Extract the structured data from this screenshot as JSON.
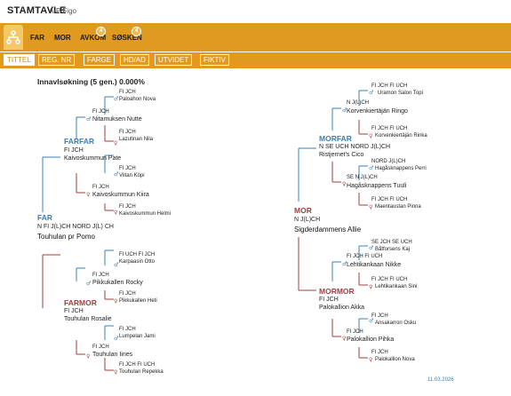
{
  "header": {
    "brand": "STAMTAVLE",
    "sub": "A-P Figo"
  },
  "nav": [
    {
      "label": "FAR"
    },
    {
      "label": "MOR"
    },
    {
      "label": "AVKOM",
      "badge": "4"
    },
    {
      "label": "SØSKEN",
      "badge": "4"
    }
  ],
  "subnav": [
    "TITTEL",
    "REG. NR",
    "FARGE",
    "HD/AD",
    "UTVIDET",
    "FIKTIV"
  ],
  "pedigree": {
    "title": "Innavlsøkning (5 gen.) 0.000%",
    "far": {
      "label": "FAR",
      "title": "N FI J(L)CH NORD J(L) CH",
      "name": "Touhulan pr Pomo"
    },
    "farfar": {
      "label": "FARFAR",
      "title": "FI JCH",
      "name": "Kaivoskummun Pate"
    },
    "farfar_f": {
      "title": "FI JCH",
      "name": "Nitamuksen Nutte"
    },
    "farfar_ff": {
      "title": "FI JCH",
      "name": "Paloahon Nova"
    },
    "farfar_fm": {
      "title": "FI JCH",
      "name": "Lazutinan Nila"
    },
    "farfar_m": {
      "title": "FI JCH",
      "name": "Kaivoskummun Kiira"
    },
    "farfar_mf": {
      "title": "FI JCH",
      "name": "Viitan Köpi"
    },
    "farfar_mm": {
      "title": "FI JCH",
      "name": "Kaivoskummun Helmi"
    },
    "farmor": {
      "label": "FARMOR",
      "title": "FI JCH",
      "name": "Touhulan Rosalie"
    },
    "farmor_f": {
      "title": "FI JCH",
      "name": "Pikkukallen Rocky"
    },
    "farmor_ff": {
      "title": "FI UCH FI JCH",
      "name": "Karpaasin Otto"
    },
    "farmor_fm": {
      "title": "FI JCH",
      "name": "Pikkukallen Heti"
    },
    "farmor_m": {
      "title": "FI JCH",
      "name": "Touhulan Iines"
    },
    "farmor_mf": {
      "title": "FI JCH",
      "name": "Lumpelan Jami"
    },
    "farmor_mm": {
      "title": "FI JCH FI UCH",
      "name": "Touhulan Repekka"
    },
    "mor": {
      "label": "MOR",
      "title": "N J(L)CH",
      "name": "Sigderdammens Allie"
    },
    "morfar": {
      "label": "MORFAR",
      "title": "N SE UCH NORD J(L)CH",
      "name": "Ristjernet's Cico"
    },
    "morfar_f": {
      "title": "N J(L)CH",
      "name": "Korvenkiertäjän Ringo"
    },
    "morfar_ff": {
      "title": "FI JCH FI UCH",
      "name": "Uramon Salon Topi"
    },
    "morfar_fm": {
      "title": "FI JCH FI UCH",
      "name": "Korvenkiertäjän Rinka"
    },
    "morfar_m": {
      "title": "SE N J(L)CH",
      "name": "Hagåsknappens Tuuli"
    },
    "morfar_mf": {
      "title": "NORD J(L)CH",
      "name": "Hagåsknappens Perri"
    },
    "morfar_mm": {
      "title": "FI JCH FI UCH",
      "name": "Maentaustan Pinna"
    },
    "mormor": {
      "label": "MORMOR",
      "title": "FI JCH",
      "name": "Palokallion Akka"
    },
    "mormor_f": {
      "title": "FI JCH FI UCH",
      "name": "Lehtikankaan Nikke"
    },
    "mormor_ff": {
      "title": "SE JCH SE UCH",
      "name": "Båtforsens Kaj"
    },
    "mormor_fm": {
      "title": "FI JCH FI UCH",
      "name": "Lehtikankaan Sini"
    },
    "mormor_m": {
      "title": "FI JCH",
      "name": "Palokallion Pihka"
    },
    "mormor_mf": {
      "title": "FI JCH",
      "name": "Ansakarron Osku"
    },
    "mormor_mm": {
      "title": "FI JCH",
      "name": "Palokallion Nova"
    }
  },
  "footer": {
    "date": "11.03.2026"
  },
  "colors": {
    "accent": "#e09a1f",
    "male": "#3a7fb8",
    "female": "#a33d3d"
  }
}
